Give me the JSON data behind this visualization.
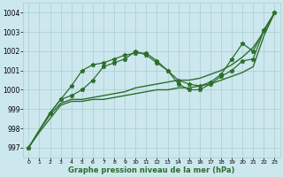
{
  "bg_color": "#cce8ee",
  "grid_color": "#aacccc",
  "line_color": "#2d6e2d",
  "xlabel": "Graphe pression niveau de la mer (hPa)",
  "xlim": [
    -0.5,
    23.5
  ],
  "ylim": [
    996.5,
    1004.5
  ],
  "yticks": [
    997,
    998,
    999,
    1000,
    1001,
    1002,
    1003,
    1004
  ],
  "xticks": [
    0,
    1,
    2,
    3,
    4,
    5,
    6,
    7,
    8,
    9,
    10,
    11,
    12,
    13,
    14,
    15,
    16,
    17,
    18,
    19,
    20,
    21,
    22,
    23
  ],
  "series": [
    {
      "x": [
        0,
        1,
        2,
        3,
        4,
        5,
        6,
        7,
        8,
        9,
        10,
        11,
        12,
        13,
        14,
        15,
        16,
        17,
        18,
        19,
        20,
        21,
        22,
        23
      ],
      "y": [
        997.0,
        997.8,
        998.5,
        999.2,
        999.4,
        999.4,
        999.5,
        999.5,
        999.6,
        999.7,
        999.8,
        999.9,
        1000.0,
        1000.0,
        1000.1,
        1000.1,
        1000.2,
        1000.3,
        1000.5,
        1000.7,
        1000.9,
        1001.2,
        1002.8,
        1004.0
      ],
      "marker": false,
      "lw": 1.0
    },
    {
      "x": [
        0,
        1,
        2,
        3,
        4,
        5,
        6,
        7,
        8,
        9,
        10,
        11,
        12,
        13,
        14,
        15,
        16,
        17,
        18,
        19,
        20,
        21,
        22,
        23
      ],
      "y": [
        997.0,
        997.9,
        998.7,
        999.3,
        999.5,
        999.5,
        999.6,
        999.7,
        999.8,
        999.9,
        1000.1,
        1000.2,
        1000.3,
        1000.4,
        1000.5,
        1000.5,
        1000.6,
        1000.8,
        1001.0,
        1001.3,
        1001.7,
        1002.2,
        1003.0,
        1004.0
      ],
      "marker": false,
      "lw": 1.0
    },
    {
      "x": [
        0,
        2,
        3,
        4,
        5,
        6,
        7,
        8,
        9,
        10,
        11,
        12,
        13,
        14,
        15,
        16,
        17,
        18,
        19,
        20,
        21,
        22,
        23
      ],
      "y": [
        997.0,
        998.8,
        999.5,
        1000.2,
        1001.0,
        1001.3,
        1001.4,
        1001.6,
        1001.8,
        1001.9,
        1001.9,
        1001.5,
        1001.0,
        1000.5,
        1000.3,
        1000.2,
        1000.4,
        1000.8,
        1001.6,
        1002.4,
        1002.0,
        1003.1,
        1004.0
      ],
      "marker": true,
      "lw": 0.9
    },
    {
      "x": [
        0,
        2,
        3,
        4,
        5,
        6,
        7,
        8,
        9,
        10,
        11,
        12,
        13,
        14,
        15,
        16,
        17,
        18,
        19,
        20,
        21,
        22,
        23
      ],
      "y": [
        997.0,
        998.8,
        999.5,
        999.7,
        1000.0,
        1000.5,
        1001.2,
        1001.4,
        1001.6,
        1002.0,
        1001.8,
        1001.4,
        1001.0,
        1000.3,
        1000.0,
        1000.0,
        1000.3,
        1000.7,
        1001.0,
        1001.5,
        1001.6,
        1003.1,
        1004.0
      ],
      "marker": true,
      "lw": 0.9
    }
  ]
}
